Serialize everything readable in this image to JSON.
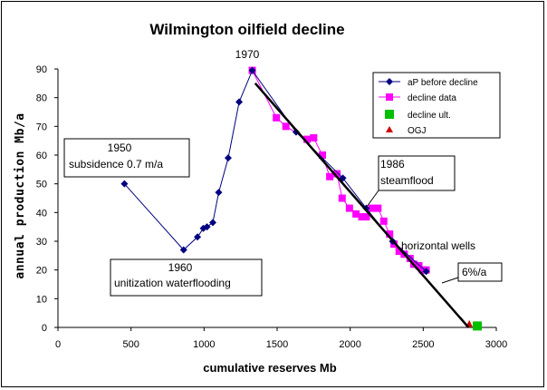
{
  "chart_data": {
    "type": "scatter",
    "title": "Wilmington oilfield decline",
    "xlabel": "cumulative reserves Mb",
    "ylabel": "annual production Mb/a",
    "xlim": [
      0,
      3000
    ],
    "ylim": [
      0,
      90
    ],
    "xticks": [
      "0",
      "500",
      "1000",
      "1500",
      "2000",
      "2500",
      "3000"
    ],
    "yticks": [
      "0",
      "10",
      "20",
      "30",
      "40",
      "50",
      "60",
      "70",
      "80",
      "90"
    ],
    "grid": false,
    "legend_position": "top-right",
    "series": [
      {
        "name": "aP before decline",
        "color": "#000080",
        "marker": "diamond",
        "line": true,
        "points": [
          [
            455,
            50
          ],
          [
            860,
            27
          ],
          [
            955,
            31.5
          ],
          [
            995,
            34.5
          ],
          [
            1020,
            35
          ],
          [
            1060,
            36.5
          ],
          [
            1100,
            47
          ],
          [
            1165,
            59
          ],
          [
            1240,
            78.5
          ],
          [
            1330,
            89.5
          ],
          [
            1630,
            68
          ],
          [
            1950,
            52
          ],
          [
            2110,
            41.5
          ],
          [
            2290,
            30
          ],
          [
            2520,
            19.5
          ]
        ]
      },
      {
        "name": "decline data",
        "color": "#ff00ff",
        "marker": "square",
        "line": true,
        "points": [
          [
            1330,
            89.5
          ],
          [
            1495,
            73
          ],
          [
            1560,
            70
          ],
          [
            1705,
            65.5
          ],
          [
            1750,
            66
          ],
          [
            1810,
            60
          ],
          [
            1860,
            52.5
          ],
          [
            1910,
            53.5
          ],
          [
            1945,
            45
          ],
          [
            1995,
            41.5
          ],
          [
            2040,
            39.5
          ],
          [
            2080,
            38.5
          ],
          [
            2110,
            38.5
          ],
          [
            2150,
            41.5
          ],
          [
            2190,
            41.5
          ],
          [
            2230,
            37
          ],
          [
            2270,
            32.5
          ],
          [
            2300,
            29
          ],
          [
            2335,
            26.5
          ],
          [
            2370,
            25.5
          ],
          [
            2410,
            24
          ],
          [
            2435,
            22
          ],
          [
            2470,
            21.5
          ],
          [
            2495,
            20
          ],
          [
            2520,
            20
          ]
        ]
      },
      {
        "name": "decline ult.",
        "color": "#00c000",
        "marker": "square",
        "line": false,
        "points": [
          [
            2870,
            0.5
          ]
        ]
      },
      {
        "name": "OGJ",
        "color": "#cc0000",
        "marker": "triangle",
        "line": false,
        "points": [
          [
            2815,
            1
          ]
        ]
      }
    ],
    "trend_line": {
      "color": "#000000",
      "x": [
        1350,
        2810
      ],
      "y": [
        85,
        0
      ]
    },
    "annotations": [
      {
        "text": "1950",
        "x": 455,
        "y": 50
      },
      {
        "text": "subsidence 0.7 m/a",
        "x": 455,
        "y": 50
      },
      {
        "text": "1960",
        "x": 860,
        "y": 27
      },
      {
        "text": "unitization waterflooding",
        "x": 860,
        "y": 27
      },
      {
        "text": "1970",
        "x": 1330,
        "y": 89.5
      },
      {
        "text": "1986",
        "x": 2110,
        "y": 41.5
      },
      {
        "text": "steamflood",
        "x": 2110,
        "y": 41.5
      },
      {
        "text": "horizontal wells",
        "x": 2290,
        "y": 30
      },
      {
        "text": "6%/a",
        "x": 2520,
        "y": 19.5
      }
    ]
  }
}
